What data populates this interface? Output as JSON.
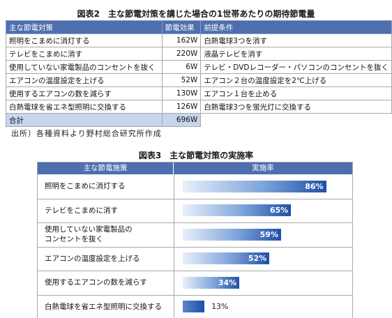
{
  "fig2": {
    "title": "図表2　主な節電対策を講じた場合の1世帯あたりの期待節電量",
    "headers": [
      "主な節電対策",
      "節電効果",
      "前提条件"
    ],
    "rows": [
      {
        "measure": "照明をこまめに消灯する",
        "effect": "162W",
        "condition": "白熱電球3つを消す"
      },
      {
        "measure": "テレビをこまめに消す",
        "effect": "220W",
        "condition": "液晶テレビを消す"
      },
      {
        "measure": "使用していない家電製品のコンセントを抜く",
        "effect": "6W",
        "condition": "テレビ・DVDレコーダー・パソコンのコンセントを抜く"
      },
      {
        "measure": "エアコンの温度設定を上げる",
        "effect": "52W",
        "condition": "エアコン２台の温度設定を2℃上げる"
      },
      {
        "measure": "使用するエアコンの数を減らす",
        "effect": "130W",
        "condition": "エアコン１台を止める"
      },
      {
        "measure": "白熱電球を省エネ型照明に交換する",
        "effect": "126W",
        "condition": "白熱電球3つを蛍光灯に交換する"
      }
    ],
    "total": {
      "label": "合計",
      "effect": "696W"
    }
  },
  "source": "出所）各種資料より野村総合研究所作成",
  "fig3": {
    "title": "図表3　主な節電対策の実施率",
    "headers": [
      "主な節電施策",
      "実施率"
    ]
  },
  "chart_data": {
    "type": "bar",
    "orientation": "horizontal",
    "categories": [
      "照明をこまめに消灯する",
      "テレビをこまめに消す",
      "使用していない家電製品の\nコンセントを抜く",
      "エアコンの温度設定を上げる",
      "使用するエアコンの数を減らす",
      "白熱電球を省エネ型照明に交換する"
    ],
    "values": [
      86,
      65,
      59,
      52,
      34,
      13
    ],
    "value_labels": [
      "86%",
      "65%",
      "59%",
      "52%",
      "34%",
      "13%"
    ],
    "xlim": [
      0,
      100
    ],
    "colors": {
      "header": "#4e6fae",
      "bar_dark": "#1f4fa6"
    }
  }
}
